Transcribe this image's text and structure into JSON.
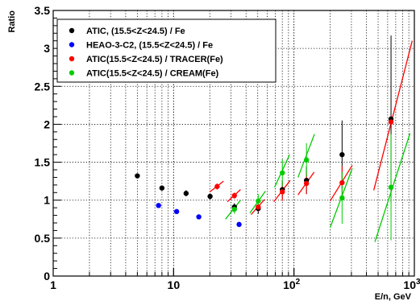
{
  "chart_data": {
    "type": "scatter",
    "xlabel": "E/n, GeV",
    "ylabel": "Ratio",
    "x_scale": "log",
    "xlim": [
      1,
      1000
    ],
    "ylim": [
      0,
      3.5
    ],
    "grid": true,
    "legend_position": "top-left",
    "x_tick_labels": [
      {
        "value": 1,
        "base": "1",
        "exp": ""
      },
      {
        "value": 10,
        "base": "10",
        "exp": ""
      },
      {
        "value": 100,
        "base": "10",
        "exp": "2"
      },
      {
        "value": 1000,
        "base": "10",
        "exp": "3"
      }
    ],
    "y_ticks": [
      0,
      0.5,
      1,
      1.5,
      2,
      2.5,
      3,
      3.5
    ],
    "y_tick_labels": [
      "0",
      "0.5",
      "1",
      "1.5",
      "2",
      "2.5",
      "3",
      "3.5"
    ],
    "series": [
      {
        "name": "ATIC, (15.5<Z<24.5) / Fe",
        "color": "#000000",
        "points": [
          {
            "x": 5.0,
            "y": 1.32,
            "err": 0.0
          },
          {
            "x": 8.0,
            "y": 1.16,
            "err": 0.0
          },
          {
            "x": 12.7,
            "y": 1.09,
            "err": 0.04
          },
          {
            "x": 20.1,
            "y": 1.05,
            "err": 0.04
          },
          {
            "x": 32.0,
            "y": 0.91,
            "err": 0.05
          },
          {
            "x": 50.5,
            "y": 0.89,
            "err": 0.07
          },
          {
            "x": 80.1,
            "y": 1.14,
            "err": 0.12
          },
          {
            "x": 127.0,
            "y": 1.26,
            "err": 0.18
          },
          {
            "x": 251.0,
            "y": 1.6,
            "err": 0.45
          },
          {
            "x": 640.0,
            "y": 2.07,
            "err": 1.1
          }
        ]
      },
      {
        "name": "HEAO-3-C2, (15.5<Z<24.5) / Fe",
        "color": "#0000ff",
        "points": [
          {
            "x": 7.5,
            "y": 0.93,
            "err": 0.0
          },
          {
            "x": 10.6,
            "y": 0.85,
            "err": 0.0
          },
          {
            "x": 16.2,
            "y": 0.78,
            "err": 0.0
          },
          {
            "x": 35.0,
            "y": 0.68,
            "err": 0.0
          }
        ]
      },
      {
        "name": "ATIC(15.5<Z<24.5) / TRACER(Fe)",
        "color": "#ff0000",
        "points": [
          {
            "x": 23.0,
            "y": 1.18,
            "err": 0.04
          },
          {
            "x": 32.0,
            "y": 1.06,
            "err": 0.04
          },
          {
            "x": 50.5,
            "y": 0.91,
            "err": 0.06
          },
          {
            "x": 80.1,
            "y": 1.11,
            "err": 0.12
          },
          {
            "x": 127.0,
            "y": 1.22,
            "err": 0.14
          },
          {
            "x": 251.0,
            "y": 1.23,
            "err": 0.22
          },
          {
            "x": 640.0,
            "y": 2.03,
            "err": 0.0
          }
        ]
      },
      {
        "name": "ATIC(15.5<Z<24.5) / CREAM(Fe)",
        "color": "#00cc00",
        "points": [
          {
            "x": 32.0,
            "y": 0.88,
            "err": 0.06
          },
          {
            "x": 50.5,
            "y": 0.99,
            "err": 0.09
          },
          {
            "x": 80.1,
            "y": 1.36,
            "err": 0.18
          },
          {
            "x": 127.0,
            "y": 1.53,
            "err": 0.22
          },
          {
            "x": 251.0,
            "y": 1.03,
            "err": 0.34
          },
          {
            "x": 640.0,
            "y": 1.17,
            "err": 0.7
          }
        ]
      }
    ],
    "trend_lines": [
      {
        "series": "ATIC(15.5<Z<24.5) / TRACER(Fe)",
        "color": "#ff0000",
        "x0": 20.0,
        "y0": 1.11,
        "x1": 26.0,
        "y1": 1.25
      },
      {
        "series": "ATIC(15.5<Z<24.5) / TRACER(Fe)",
        "color": "#ff0000",
        "x0": 28.0,
        "y0": 0.98,
        "x1": 36.0,
        "y1": 1.14
      },
      {
        "series": "ATIC(15.5<Z<24.5) / TRACER(Fe)",
        "color": "#ff0000",
        "x0": 44.0,
        "y0": 0.81,
        "x1": 57.0,
        "y1": 1.01
      },
      {
        "series": "ATIC(15.5<Z<24.5) / TRACER(Fe)",
        "color": "#ff0000",
        "x0": 68.0,
        "y0": 0.98,
        "x1": 93.0,
        "y1": 1.26
      },
      {
        "series": "ATIC(15.5<Z<24.5) / TRACER(Fe)",
        "color": "#ff0000",
        "x0": 108.0,
        "y0": 1.07,
        "x1": 147.0,
        "y1": 1.37
      },
      {
        "series": "ATIC(15.5<Z<24.5) / TRACER(Fe)",
        "color": "#ff0000",
        "x0": 200.0,
        "y0": 0.99,
        "x1": 305.0,
        "y1": 1.46
      },
      {
        "series": "ATIC(15.5<Z<24.5) / TRACER(Fe)",
        "color": "#ff0000",
        "x0": 460.0,
        "y0": 1.13,
        "x1": 960.0,
        "y1": 3.1
      },
      {
        "series": "ATIC(15.5<Z<24.5) / CREAM(Fe)",
        "color": "#00cc00",
        "x0": 27.0,
        "y0": 0.75,
        "x1": 36.0,
        "y1": 1.0
      },
      {
        "series": "ATIC(15.5<Z<24.5) / CREAM(Fe)",
        "color": "#00cc00",
        "x0": 43.0,
        "y0": 0.83,
        "x1": 58.0,
        "y1": 1.12
      },
      {
        "series": "ATIC(15.5<Z<24.5) / CREAM(Fe)",
        "color": "#00cc00",
        "x0": 69.0,
        "y0": 1.17,
        "x1": 92.0,
        "y1": 1.6
      },
      {
        "series": "ATIC(15.5<Z<24.5) / CREAM(Fe)",
        "color": "#00cc00",
        "x0": 108.0,
        "y0": 1.3,
        "x1": 148.0,
        "y1": 1.87
      },
      {
        "series": "ATIC(15.5<Z<24.5) / CREAM(Fe)",
        "color": "#00cc00",
        "x0": 200.0,
        "y0": 0.64,
        "x1": 305.0,
        "y1": 1.42
      },
      {
        "series": "ATIC(15.5<Z<24.5) / CREAM(Fe)",
        "color": "#00cc00",
        "x0": 470.0,
        "y0": 0.45,
        "x1": 920.0,
        "y1": 1.88
      }
    ]
  }
}
